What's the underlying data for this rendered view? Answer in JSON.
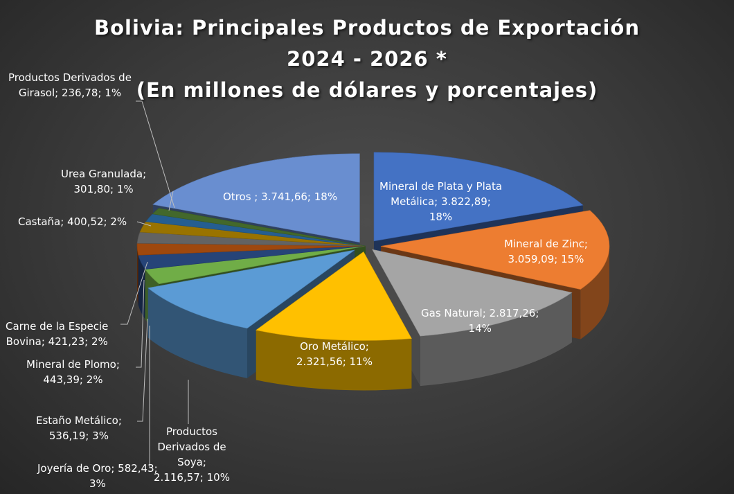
{
  "chart_data": {
    "type": "pie",
    "style": "3d-exploded",
    "title_lines": [
      "Bolivia: Principales Productos de Exportación",
      "2024 - 2026 *",
      "(En millones de dólares y porcentajes)"
    ],
    "slices": [
      {
        "name": "Mineral de Plata y Plata Metálica",
        "value": 3822.89,
        "percent": 18,
        "label_lines": [
          "Mineral de Plata y Plata",
          "Metálica; 3.822,89;",
          "18%"
        ],
        "color": "#4472c4"
      },
      {
        "name": "Mineral de Zinc",
        "value": 3059.09,
        "percent": 15,
        "label_lines": [
          "Mineral de Zinc;",
          "3.059,09; 15%"
        ],
        "color": "#ed7d31"
      },
      {
        "name": "Gas Natural",
        "value": 2817.26,
        "percent": 14,
        "label_lines": [
          "Gas Natural; 2.817,26;",
          "14%"
        ],
        "color": "#a5a5a5"
      },
      {
        "name": "Oro Metálico",
        "value": 2321.56,
        "percent": 11,
        "label_lines": [
          "Oro Metálico;",
          "2.321,56; 11%"
        ],
        "color": "#ffc000"
      },
      {
        "name": "Productos Derivados de Soya",
        "value": 2116.57,
        "percent": 10,
        "label_lines": [
          "Productos",
          "Derivados de",
          "Soya;",
          "2.116,57; 10%"
        ],
        "color": "#5b9bd5"
      },
      {
        "name": "Joyería de Oro",
        "value": 582.43,
        "percent": 3,
        "label_lines": [
          "Joyería de Oro; 582,43;",
          "3%"
        ],
        "color": "#70ad47"
      },
      {
        "name": "Estaño Metálico",
        "value": 536.19,
        "percent": 3,
        "label_lines": [
          "Estaño Metálico;",
          "536,19; 3%"
        ],
        "color": "#264478"
      },
      {
        "name": "Mineral de Plomo",
        "value": 443.39,
        "percent": 2,
        "label_lines": [
          "Mineral de Plomo;",
          "443,39; 2%"
        ],
        "color": "#9e480e"
      },
      {
        "name": "Carne de la Especie Bovina",
        "value": 421.23,
        "percent": 2,
        "label_lines": [
          "Carne de la Especie",
          "Bovina; 421,23; 2%"
        ],
        "color": "#636363"
      },
      {
        "name": "Castaña",
        "value": 400.52,
        "percent": 2,
        "label_lines": [
          "Castaña; 400,52; 2%"
        ],
        "color": "#997300"
      },
      {
        "name": "Urea Granulada",
        "value": 301.8,
        "percent": 1,
        "label_lines": [
          "Urea Granulada;",
          "301,80; 1%"
        ],
        "color": "#255e91"
      },
      {
        "name": "Productos Derivados de Girasol",
        "value": 236.78,
        "percent": 1,
        "label_lines": [
          "Productos Derivados de",
          "Girasol; 236,78; 1%"
        ],
        "color": "#43682b"
      },
      {
        "name": "Otros",
        "value": 3741.66,
        "percent": 18,
        "label_lines": [
          "Otros ; 3.741,66; 18%"
        ],
        "color": "#698ed0"
      }
    ]
  }
}
